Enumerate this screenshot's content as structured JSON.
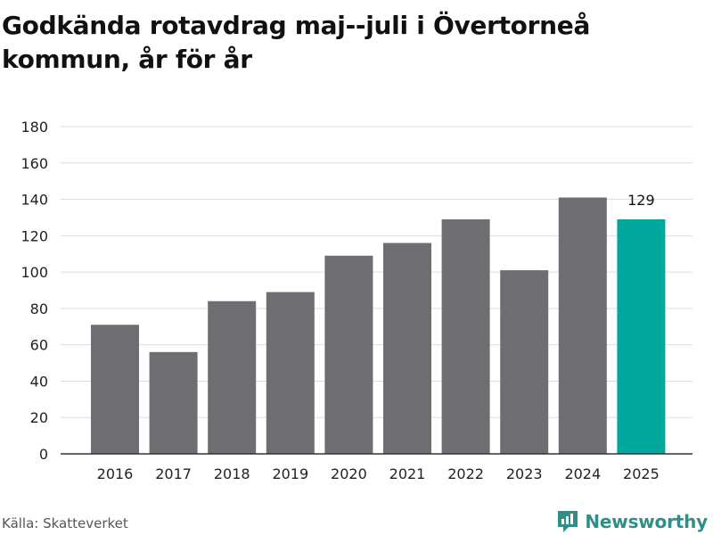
{
  "colors": {
    "bar": "#6e6d72",
    "highlight": "#00a79d",
    "grid": "#dddddd",
    "brand": "#2f8f86"
  },
  "source": "Källa: Skatteverket",
  "brand": {
    "name": "Newsworthy",
    "icon": "newsworthy-logo-icon"
  },
  "chart_data": {
    "type": "bar",
    "title": "Godkända rotavdrag maj--juli i Övertorneå kommun, år för år",
    "xlabel": "",
    "ylabel": "",
    "categories": [
      "2016",
      "2017",
      "2018",
      "2019",
      "2020",
      "2021",
      "2022",
      "2023",
      "2024",
      "2025"
    ],
    "values": [
      71,
      56,
      84,
      89,
      109,
      116,
      129,
      101,
      141,
      129
    ],
    "highlight_index": 9,
    "data_labels": [
      {
        "index": 9,
        "text": "129"
      }
    ],
    "ylim": [
      0,
      180
    ],
    "yticks": [
      0,
      20,
      40,
      60,
      80,
      100,
      120,
      140,
      160,
      180
    ],
    "grid": true,
    "legend": "none"
  }
}
